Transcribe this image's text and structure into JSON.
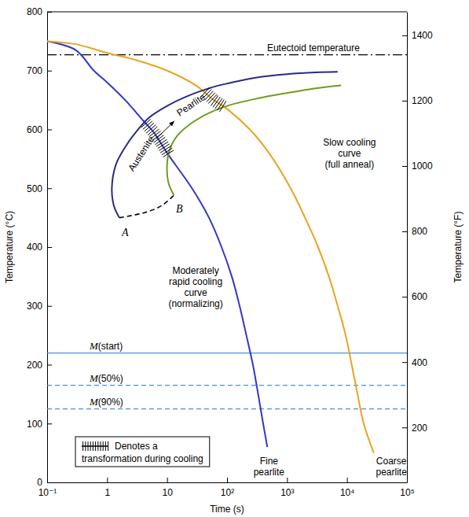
{
  "chart_data": {
    "type": "line",
    "log": "x",
    "grid": false,
    "legend": "lower left",
    "x_label": "Time (s)",
    "y_label": "Temperature (°C)",
    "y2_label": "Temperature (°F)",
    "xlim": [
      0.1,
      100000
    ],
    "xticks": [
      {
        "value": 0.1,
        "label": "10⁻¹"
      },
      1,
      10,
      {
        "value": 100,
        "label": "10²"
      },
      {
        "value": 1000,
        "label": "10³"
      },
      {
        "value": 10000,
        "label": "10⁴"
      },
      {
        "value": 100000,
        "label": "10⁵"
      }
    ],
    "ylim": [
      0,
      800
    ],
    "yticks": [
      0,
      100,
      200,
      300,
      400,
      500,
      600,
      700,
      800
    ],
    "y2lim": [
      32,
      1472
    ],
    "y2ticks": [
      200,
      400,
      600,
      800,
      1000,
      1200,
      1400
    ],
    "series": [
      {
        "color": "#3535c8",
        "line_style": "solid",
        "x": [
          0.1,
          0.3,
          0.6,
          1,
          2,
          4,
          6,
          10,
          26,
          50,
          81,
          120,
          162,
          210,
          270,
          330,
          400,
          470
        ],
        "values": [
          750,
          735,
          700,
          680,
          650,
          615,
          595,
          560,
          500,
          450,
          400,
          350,
          300,
          250,
          200,
          150,
          100,
          60
        ]
      },
      {
        "color": "#e6a520",
        "line_style": "solid",
        "x": [
          0.1,
          0.3,
          1,
          3,
          10,
          30,
          60,
          100,
          240,
          500,
          1150,
          2000,
          3300,
          5000,
          7000,
          9500,
          12000,
          15000,
          19000,
          28000
        ],
        "values": [
          750,
          745,
          730,
          718,
          700,
          675,
          650,
          635,
          600,
          560,
          500,
          450,
          400,
          350,
          300,
          250,
          200,
          150,
          100,
          50
        ]
      },
      {
        "color": "#2a2a8a",
        "line_style": "solid",
        "x": [
          1.6,
          1.3,
          1.2,
          1.4,
          2,
          3,
          5,
          10,
          20,
          50,
          100,
          300,
          1000,
          3000,
          7000
        ],
        "values": [
          450,
          470,
          500,
          540,
          570,
          595,
          620,
          640,
          655,
          670,
          678,
          688,
          694,
          697,
          698
        ]
      },
      {
        "color": "#6f9c1e",
        "line_style": "solid",
        "x": [
          13,
          10.5,
          10,
          11,
          15,
          25,
          50,
          100,
          300,
          1000,
          3000,
          8000
        ],
        "values": [
          488,
          510,
          540,
          565,
          590,
          610,
          628,
          640,
          652,
          662,
          670,
          675
        ]
      },
      {
        "color": "#000000",
        "line_style": "dashed",
        "x": [
          1.6,
          4,
          8,
          13
        ],
        "values": [
          450,
          458,
          470,
          488
        ]
      }
    ],
    "hatch": {
      "label": [
        "Denotes a",
        "transformation during cooling"
      ],
      "color": "#000000",
      "segments": [
        {
          "x": [
            4.3,
            6,
            8,
            10.8
          ],
          "values": [
            612,
            595,
            578,
            557
          ]
        },
        {
          "x": [
            42,
            60,
            75,
            90
          ],
          "values": [
            665,
            650,
            643,
            638
          ]
        }
      ]
    },
    "reference_lines": [
      {
        "label": "Eutectoid temperature",
        "value": 727,
        "color": "#000000",
        "line_style": "dashdot"
      },
      {
        "label": "M(start)",
        "value": 220,
        "color": "#4a90d9",
        "line_style": "solid"
      },
      {
        "label": "M(50%)",
        "value": 165,
        "color": "#4a90d9",
        "line_style": "dashed"
      },
      {
        "label": "M(90%)",
        "value": 125,
        "color": "#4a90d9",
        "line_style": "dashed"
      }
    ],
    "annotations": [
      {
        "text": [
          "Austenite"
        ],
        "x": 3.7,
        "y": 559
      },
      {
        "text": [
          "Pearlite"
        ],
        "x": 25,
        "y": 642
      },
      {
        "text": [
          "A"
        ],
        "x": 2.0,
        "y": 425
      },
      {
        "text": [
          "B"
        ],
        "x": 16,
        "y": 465
      },
      {
        "text": [
          "Slow cooling",
          "curve",
          "(full anneal)"
        ],
        "x": 11000,
        "y": 559
      },
      {
        "text": [
          "Moderately",
          "rapid cooling",
          "curve",
          "(normalizing)"
        ],
        "x": 30,
        "y": 332
      },
      {
        "text": [
          "Fine",
          "pearlite"
        ],
        "x": 500,
        "y": 27
      },
      {
        "text": [
          "Coarse",
          "pearlite"
        ],
        "x": 55000,
        "y": 27
      }
    ]
  }
}
